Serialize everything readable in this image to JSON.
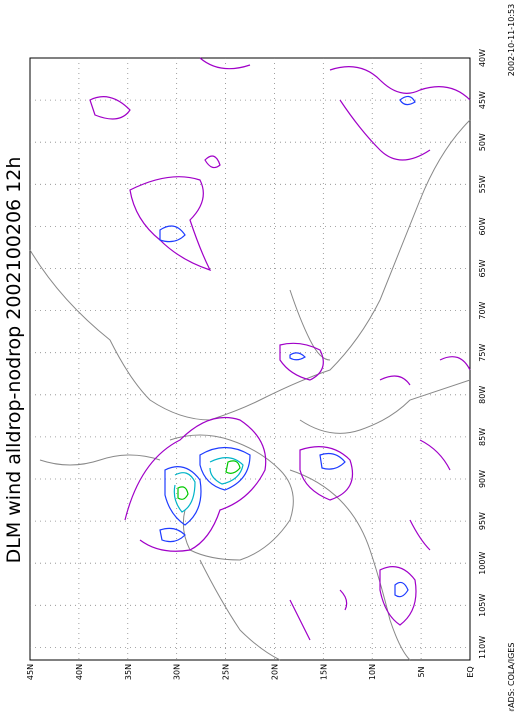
{
  "title": "DLM wind alldrop-nodrop 2002100206 12h",
  "timestamp": "2002-10-11-10:53",
  "credit": "GrADS: COLA/IGES",
  "lat_labels": [
    "EQ",
    "5N",
    "10N",
    "15N",
    "20N",
    "25N",
    "30N",
    "35N",
    "40N",
    "45N"
  ],
  "lon_labels": [
    "40W",
    "45W",
    "50W",
    "55W",
    "60W",
    "65W",
    "70W",
    "75W",
    "80W",
    "85W",
    "90W",
    "95W",
    "100W",
    "105W",
    "110W"
  ]
}
